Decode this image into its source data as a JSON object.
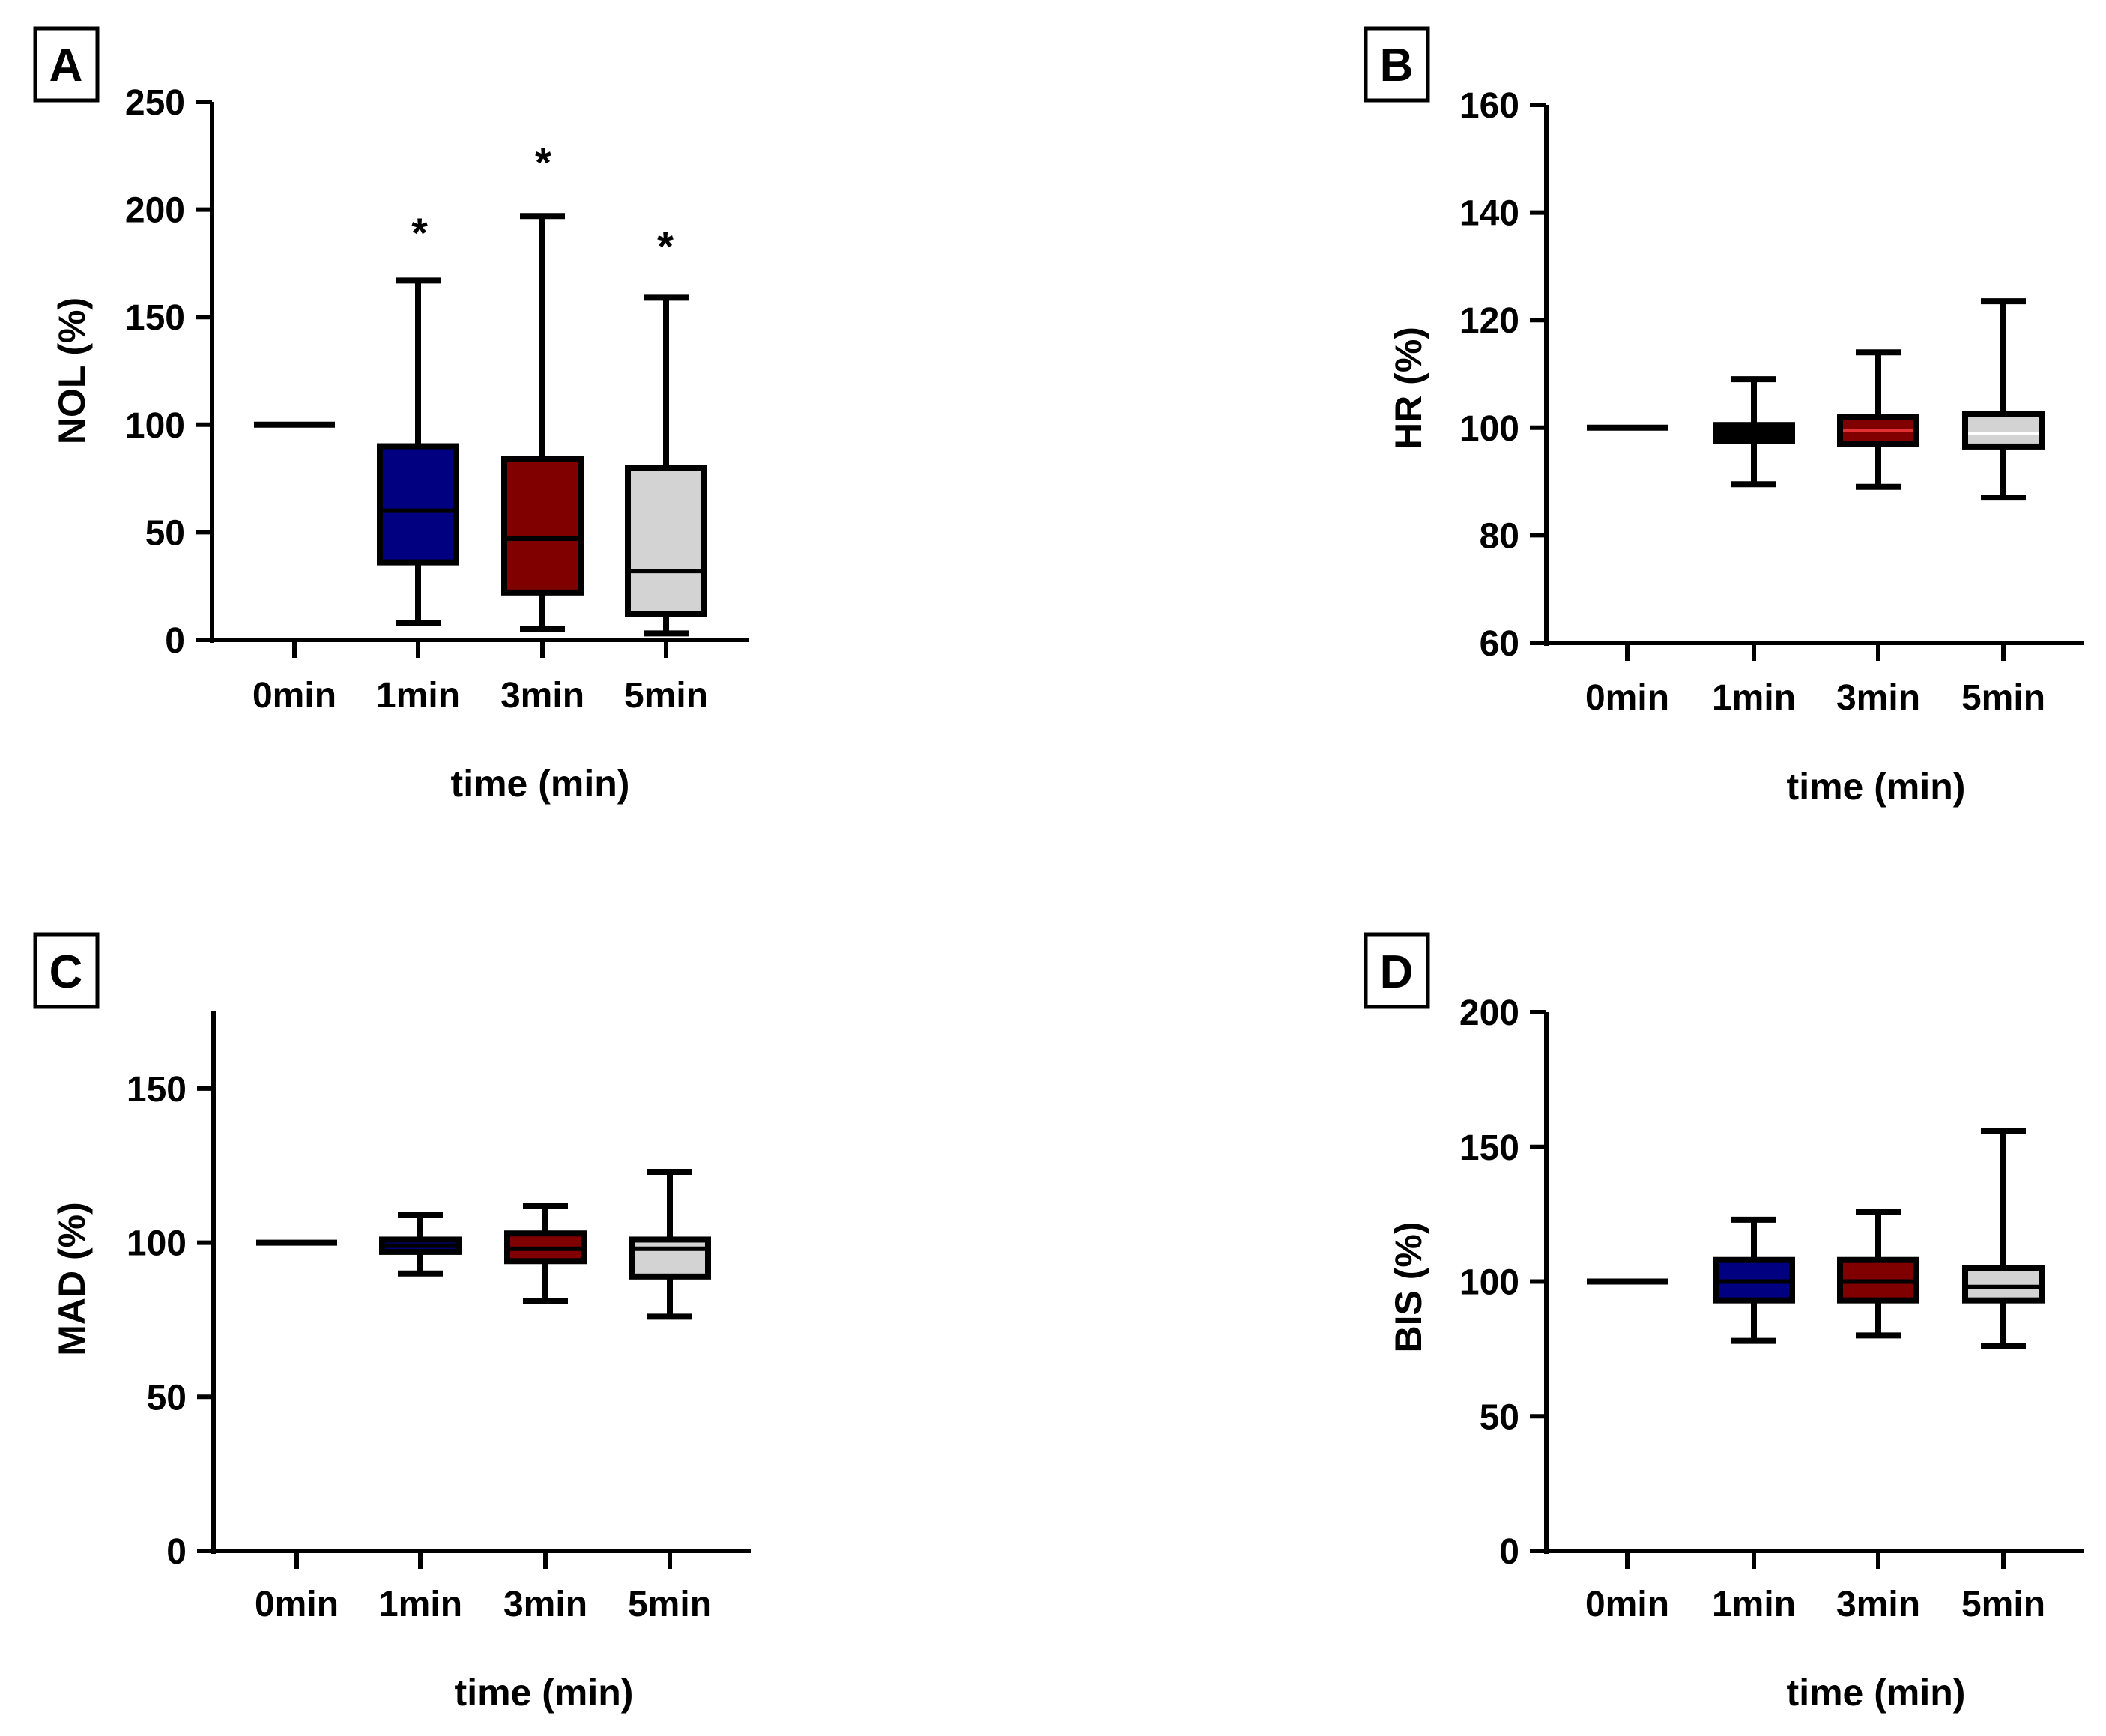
{
  "chart_data": [
    {
      "type": "boxplot",
      "panel_label": "A",
      "ylabel": "NOL (%)",
      "xlabel": "time (min)",
      "categories": [
        "0min",
        "1min",
        "3min",
        "5min"
      ],
      "ylim": [
        0,
        250
      ],
      "yticks": [
        0,
        50,
        100,
        150,
        200,
        250
      ],
      "ytick_labels": [
        "0",
        "50",
        "100",
        "150",
        "200",
        "250"
      ],
      "boxes": [
        {
          "min": 100,
          "q1": 100,
          "median": 100,
          "q3": 100,
          "max": 100
        },
        {
          "min": 8,
          "q1": 36,
          "median": 60,
          "q3": 90,
          "max": 167
        },
        {
          "min": 5,
          "q1": 22,
          "median": 47,
          "q3": 84,
          "max": 197
        },
        {
          "min": 3,
          "q1": 12,
          "median": 32,
          "q3": 80,
          "max": 159
        }
      ],
      "annotations": [
        "",
        "*",
        "*",
        "*"
      ]
    },
    {
      "type": "boxplot",
      "panel_label": "B",
      "ylabel": "HR (%)",
      "xlabel": "time (min)",
      "categories": [
        "0min",
        "1min",
        "3min",
        "5min"
      ],
      "ylim": [
        60,
        160
      ],
      "yticks": [
        60,
        80,
        100,
        120,
        140,
        160
      ],
      "ytick_labels": [
        "60",
        "80",
        "100",
        "120",
        "140",
        "160"
      ],
      "boxes": [
        {
          "min": 100,
          "q1": 100,
          "median": 100,
          "q3": 100,
          "max": 100
        },
        {
          "min": 89.5,
          "q1": 97.5,
          "median": 99,
          "q3": 100.5,
          "max": 109
        },
        {
          "min": 89,
          "q1": 97,
          "median": 99.5,
          "q3": 102,
          "max": 114
        },
        {
          "min": 87,
          "q1": 96.5,
          "median": 99,
          "q3": 102.5,
          "max": 123.5
        }
      ],
      "annotations": [
        "",
        "",
        "",
        ""
      ]
    },
    {
      "type": "boxplot",
      "panel_label": "C",
      "ylabel": "MAD (%)",
      "xlabel": "time (min)",
      "categories": [
        "0min",
        "1min",
        "3min",
        "5min"
      ],
      "ylim": [
        0,
        175
      ],
      "yticks": [
        0,
        50,
        100,
        150
      ],
      "ytick_labels": [
        "0",
        "50",
        "100",
        "150"
      ],
      "boxes": [
        {
          "min": 100,
          "q1": 100,
          "median": 100,
          "q3": 100,
          "max": 100
        },
        {
          "min": 90,
          "q1": 97,
          "median": 99,
          "q3": 101,
          "max": 109
        },
        {
          "min": 81,
          "q1": 94,
          "median": 98,
          "q3": 103,
          "max": 112
        },
        {
          "min": 76,
          "q1": 89,
          "median": 98,
          "q3": 101,
          "max": 123
        }
      ],
      "annotations": [
        "",
        "",
        "",
        ""
      ]
    },
    {
      "type": "boxplot",
      "panel_label": "D",
      "ylabel": "BIS (%)",
      "xlabel": "time (min)",
      "categories": [
        "0min",
        "1min",
        "3min",
        "5min"
      ],
      "ylim": [
        0,
        200
      ],
      "yticks": [
        0,
        50,
        100,
        150,
        200
      ],
      "ytick_labels": [
        "0",
        "50",
        "100",
        "150",
        "200"
      ],
      "boxes": [
        {
          "min": 100,
          "q1": 100,
          "median": 100,
          "q3": 100,
          "max": 100
        },
        {
          "min": 78,
          "q1": 93,
          "median": 100,
          "q3": 108,
          "max": 123
        },
        {
          "min": 80,
          "q1": 93,
          "median": 100,
          "q3": 108,
          "max": 126
        },
        {
          "min": 76,
          "q1": 93,
          "median": 98,
          "q3": 105,
          "max": 156
        }
      ],
      "annotations": [
        "",
        "",
        "",
        ""
      ]
    }
  ],
  "colors": {
    "box_fills": [
      "#ffffff",
      "#000080",
      "#800000",
      "#d3d3d3"
    ],
    "hr_box_fills": [
      "#ffffff",
      "#000000",
      "#800000",
      "#d3d3d3"
    ],
    "hr_median_colors": [
      "#000000",
      "#000000",
      "#e03030",
      "#ffffff"
    ],
    "stroke": "#000000"
  }
}
